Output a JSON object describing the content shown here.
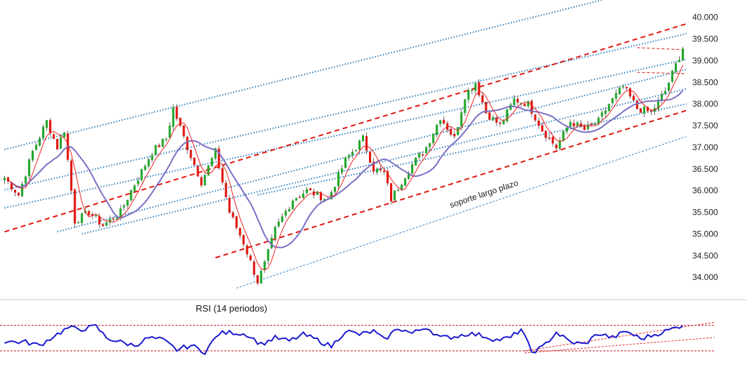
{
  "chart_data": {
    "type": "candlestick",
    "title": "",
    "xlabel": "",
    "ylabel": "",
    "ylim": [
      33500,
      40400
    ],
    "yticks": [
      34000,
      34500,
      35000,
      35500,
      36000,
      36500,
      37000,
      37500,
      38000,
      38500,
      39000,
      39500,
      40000
    ],
    "ytick_labels": [
      "34.000",
      "34.500",
      "35.000",
      "35.500",
      "36.000",
      "36.500",
      "37.000",
      "37.500",
      "38.000",
      "38.500",
      "39.000",
      "39.500",
      "40.000"
    ],
    "colors": {
      "up": "#22a62a",
      "down": "#e0140e",
      "fast_ma": "#ee2222",
      "slow_ma": "#7b6fc4",
      "channel": "#e0140e",
      "parallel": "#2a7fc0",
      "support": "#3d88c8",
      "rsi": "#1a1ad0"
    },
    "price_keypoints": [
      [
        0,
        36300
      ],
      [
        4,
        35900
      ],
      [
        8,
        36900
      ],
      [
        12,
        37600
      ],
      [
        15,
        37000
      ],
      [
        17,
        37400
      ],
      [
        20,
        35300
      ],
      [
        24,
        35500
      ],
      [
        28,
        35200
      ],
      [
        33,
        35500
      ],
      [
        36,
        36000
      ],
      [
        42,
        36900
      ],
      [
        46,
        37200
      ],
      [
        48,
        37900
      ],
      [
        52,
        37000
      ],
      [
        56,
        36200
      ],
      [
        60,
        36900
      ],
      [
        64,
        35500
      ],
      [
        68,
        34800
      ],
      [
        72,
        33900
      ],
      [
        74,
        34300
      ],
      [
        77,
        35100
      ],
      [
        82,
        35800
      ],
      [
        86,
        36000
      ],
      [
        92,
        35800
      ],
      [
        97,
        36700
      ],
      [
        102,
        37200
      ],
      [
        105,
        36500
      ],
      [
        108,
        36400
      ],
      [
        110,
        35800
      ],
      [
        115,
        36500
      ],
      [
        120,
        37000
      ],
      [
        124,
        37700
      ],
      [
        128,
        37200
      ],
      [
        131,
        38200
      ],
      [
        134,
        38500
      ],
      [
        137,
        37800
      ],
      [
        141,
        37500
      ],
      [
        145,
        38100
      ],
      [
        149,
        38000
      ],
      [
        153,
        37400
      ],
      [
        157,
        37000
      ],
      [
        161,
        37600
      ],
      [
        165,
        37400
      ],
      [
        169,
        37600
      ],
      [
        172,
        38000
      ],
      [
        176,
        38400
      ],
      [
        180,
        37900
      ],
      [
        184,
        37800
      ],
      [
        188,
        38300
      ],
      [
        190,
        38700
      ],
      [
        193,
        39300
      ]
    ],
    "candle_count": 194,
    "ma_fast_period": 5,
    "ma_slow_period": 14,
    "channel_lines": [
      {
        "name": "",
        "style": "dashed-red",
        "x": [
          0,
          194
        ],
        "y": [
          35050,
          39850
        ]
      },
      {
        "name": "",
        "style": "dashed-red",
        "x": [
          60,
          194
        ],
        "y": [
          34450,
          37850
        ]
      },
      {
        "name": "",
        "style": "dashed-red-short",
        "x": [
          180,
          194
        ],
        "y": [
          39300,
          39250
        ]
      },
      {
        "name": "",
        "style": "dashed-red-short",
        "x": [
          180,
          194
        ],
        "y": [
          38730,
          38700
        ]
      }
    ],
    "parallel_lines": [
      {
        "x": [
          0,
          170
        ],
        "y": [
          36950,
          40400
        ]
      },
      {
        "x": [
          0,
          194
        ],
        "y": [
          36020,
          39620
        ]
      },
      {
        "x": [
          0,
          194
        ],
        "y": [
          35600,
          39030
        ]
      },
      {
        "x": [
          15,
          194
        ],
        "y": [
          35050,
          38800
        ]
      },
      {
        "x": [
          22,
          194
        ],
        "y": [
          35000,
          38350
        ]
      },
      {
        "x": [
          72,
          194
        ],
        "y": [
          35900,
          38000
        ]
      }
    ],
    "support_line": {
      "name": "soporte largo plazo",
      "x": [
        66,
        194
      ],
      "y": [
        33750,
        37250
      ]
    },
    "annotations": [
      {
        "text": "soporte largo plazo",
        "x": 127,
        "y": 35600
      }
    ],
    "rsi": {
      "label": "RSI (14 periodos)",
      "ylim": [
        15,
        90
      ],
      "upper_level": 75,
      "lower_level": 28,
      "keypoints": [
        [
          0,
          45
        ],
        [
          6,
          44
        ],
        [
          10,
          38
        ],
        [
          14,
          55
        ],
        [
          18,
          70
        ],
        [
          22,
          68
        ],
        [
          26,
          73
        ],
        [
          29,
          52
        ],
        [
          33,
          44
        ],
        [
          37,
          38
        ],
        [
          41,
          52
        ],
        [
          45,
          48
        ],
        [
          49,
          30
        ],
        [
          53,
          38
        ],
        [
          57,
          26
        ],
        [
          61,
          60
        ],
        [
          65,
          62
        ],
        [
          69,
          58
        ],
        [
          73,
          40
        ],
        [
          77,
          52
        ],
        [
          81,
          46
        ],
        [
          85,
          58
        ],
        [
          89,
          48
        ],
        [
          93,
          36
        ],
        [
          97,
          65
        ],
        [
          101,
          58
        ],
        [
          105,
          64
        ],
        [
          108,
          48
        ],
        [
          112,
          70
        ],
        [
          116,
          60
        ],
        [
          120,
          72
        ],
        [
          124,
          52
        ],
        [
          128,
          54
        ],
        [
          132,
          60
        ],
        [
          136,
          56
        ],
        [
          140,
          48
        ],
        [
          144,
          52
        ],
        [
          147,
          68
        ],
        [
          150,
          26
        ],
        [
          153,
          34
        ],
        [
          157,
          62
        ],
        [
          161,
          44
        ],
        [
          165,
          40
        ],
        [
          169,
          60
        ],
        [
          173,
          52
        ],
        [
          177,
          64
        ],
        [
          181,
          50
        ],
        [
          185,
          58
        ],
        [
          189,
          66
        ],
        [
          193,
          76
        ]
      ],
      "trend_lines": [
        {
          "x": [
            148,
            194
          ],
          "y": [
            28,
            78
          ]
        },
        {
          "x": [
            148,
            194
          ],
          "y": [
            24,
            50
          ]
        }
      ]
    }
  }
}
